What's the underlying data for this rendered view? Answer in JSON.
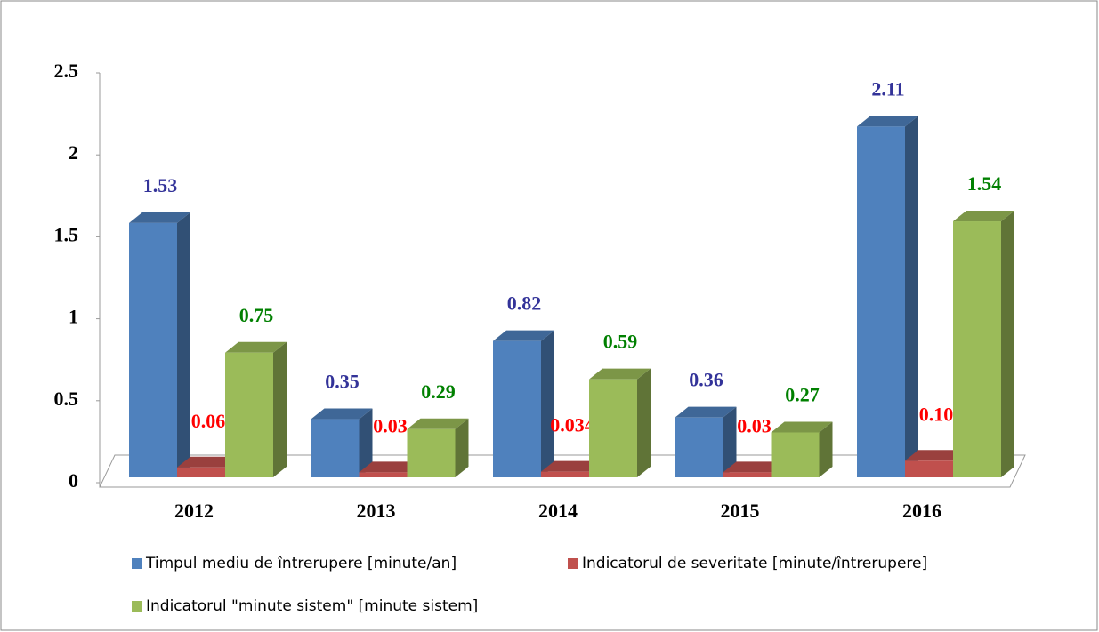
{
  "chart_data": {
    "type": "bar3d",
    "categories": [
      "2012",
      "2013",
      "2014",
      "2015",
      "2016"
    ],
    "series": [
      {
        "name": "Timpul mediu de întrerupere [minute/an]",
        "color": "#4f81bd",
        "label_color": "#333399",
        "values": [
          1.53,
          0.35,
          0.82,
          0.36,
          2.11
        ],
        "value_labels": [
          "1.53",
          "0.35",
          "0.82",
          "0.36",
          "2.11"
        ]
      },
      {
        "name": "Indicatorul de severitate [minute/întrerupere]",
        "color": "#c0504d",
        "label_color": "#ff0000",
        "values": [
          0.06,
          0.03,
          0.034,
          0.03,
          0.1
        ],
        "value_labels": [
          "0.06",
          "0.03",
          "0.034",
          "0.03",
          "0.10"
        ]
      },
      {
        "name": "Indicatorul \"minute sistem\" [minute sistem]",
        "color": "#9bbb59",
        "label_color": "#008000",
        "values": [
          0.75,
          0.29,
          0.59,
          0.27,
          1.54
        ],
        "value_labels": [
          "0.75",
          "0.29",
          "0.59",
          "0.27",
          "1.54"
        ]
      }
    ],
    "ylim": [
      0,
      2.5
    ],
    "yticks": [
      0,
      0.5,
      1,
      1.5,
      2,
      2.5
    ],
    "legend": "bottom"
  }
}
